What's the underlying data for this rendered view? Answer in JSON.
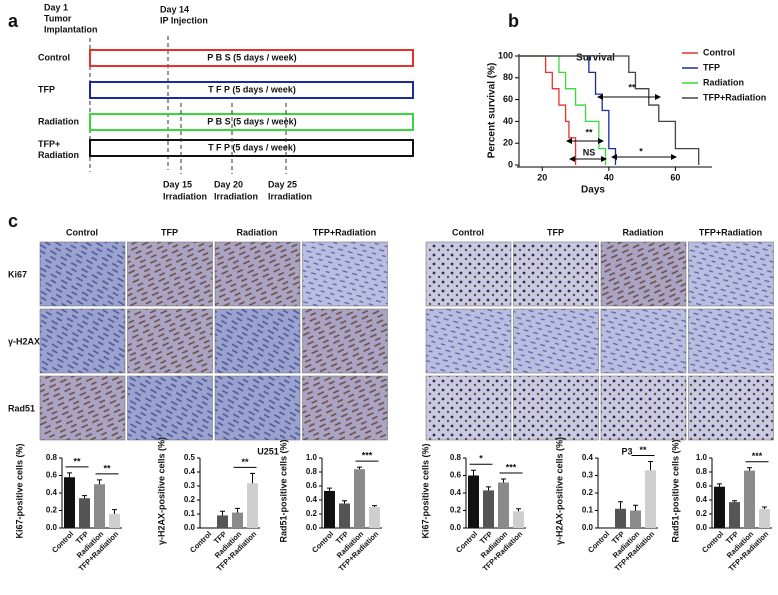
{
  "panel_a": {
    "label": "a",
    "day1": [
      "Day 1",
      "Tumor",
      "Implantation"
    ],
    "day14": [
      "Day 14",
      "IP Injection"
    ],
    "groups": [
      {
        "label": [
          "Control"
        ],
        "treatment": "P B S  (5 days / week)",
        "color": "#e8302a"
      },
      {
        "label": [
          "TFP"
        ],
        "treatment": "T F P  (5 days / week)",
        "color": "#1c2a9c"
      },
      {
        "label": [
          "Radiation"
        ],
        "treatment": "P B S  (5 days / week)",
        "color": "#39d839"
      },
      {
        "label": [
          "TFP+",
          "Radiation"
        ],
        "treatment": "T F P  (5 days / week)",
        "color": "#111111"
      }
    ],
    "irradiation": [
      [
        "Day 15",
        "Irradiation"
      ],
      [
        "Day 20",
        "Irradiation"
      ],
      [
        "Day 25",
        "Irradiation"
      ]
    ]
  },
  "panel_b": {
    "label": "b"
  },
  "panel_c": {
    "label": "c",
    "columns": [
      "Control",
      "TFP",
      "Radiation",
      "TFP+Radiation"
    ],
    "rows": [
      "Ki67",
      "γ-H2AX",
      "Rad51"
    ],
    "cell_lines": [
      "U251",
      "P3"
    ]
  },
  "chart_data": [
    {
      "type": "step",
      "title": "Survival",
      "xlabel": "Days",
      "ylabel": "Percent survival (%)",
      "xlim": [
        13,
        71
      ],
      "xticks": [
        20,
        40,
        60
      ],
      "ylim": [
        0,
        100
      ],
      "yticks": [
        0,
        20,
        40,
        60,
        80,
        100
      ],
      "series": [
        {
          "name": "Control",
          "color": "#e8302a",
          "x": [
            13,
            21,
            23,
            25,
            27,
            28,
            30
          ],
          "values": [
            100,
            85,
            70,
            55,
            40,
            25,
            0
          ]
        },
        {
          "name": "TFP",
          "color": "#1c2a9c",
          "x": [
            13,
            34,
            36,
            38,
            40,
            42
          ],
          "values": [
            100,
            85,
            65,
            50,
            15,
            0
          ]
        },
        {
          "name": "Radiation",
          "color": "#39d839",
          "x": [
            13,
            25,
            27,
            30,
            33,
            37,
            39
          ],
          "values": [
            100,
            85,
            70,
            55,
            40,
            15,
            0
          ]
        },
        {
          "name": "TFP+Radiation",
          "color": "#444444",
          "x": [
            13,
            46,
            48,
            52,
            55,
            60,
            67
          ],
          "values": [
            100,
            85,
            70,
            55,
            40,
            15,
            0
          ]
        }
      ],
      "annotations": [
        "**",
        "**",
        "NS",
        "*"
      ]
    },
    {
      "type": "bar",
      "ylabel": "Ki67-positive cells (%)",
      "categories": [
        "Control",
        "TFP",
        "Radiation",
        "TFP+Radiation"
      ],
      "colors": [
        "#111111",
        "#555555",
        "#8a8a8a",
        "#cfcfcf"
      ],
      "values": [
        0.58,
        0.34,
        0.5,
        0.16
      ],
      "errors": [
        0.05,
        0.03,
        0.05,
        0.05
      ],
      "ylim": [
        0,
        0.8
      ],
      "yticks": [
        {
          "value": 0,
          "label": "0.0"
        },
        0.2,
        0.4,
        0.6,
        0.8
      ],
      "annotations": [
        "**",
        "**"
      ]
    },
    {
      "type": "bar",
      "ylabel": "γ-H2AX-positive cells (%)",
      "categories": [
        "Control",
        "TFP",
        "Radiation",
        "TFP+Radiation"
      ],
      "colors": [
        "#111111",
        "#555555",
        "#8a8a8a",
        "#cfcfcf"
      ],
      "values": [
        0,
        0.09,
        0.11,
        0.32
      ],
      "errors": [
        0,
        0.03,
        0.03,
        0.07
      ],
      "ylim": [
        0,
        0.5
      ],
      "yticks": [
        {
          "value": 0,
          "label": "0.0"
        },
        0.1,
        0.2,
        0.3,
        0.4,
        0.5
      ],
      "annotations": [
        "**"
      ]
    },
    {
      "type": "bar",
      "ylabel": "Rad51-positive cells (%)",
      "categories": [
        "Control",
        "TFP",
        "Radiation",
        "TFP+Radiation"
      ],
      "colors": [
        "#111111",
        "#555555",
        "#8a8a8a",
        "#cfcfcf"
      ],
      "values": [
        0.53,
        0.35,
        0.84,
        0.3
      ],
      "errors": [
        0.04,
        0.04,
        0.03,
        0.02
      ],
      "ylim": [
        0,
        1
      ],
      "yticks": [
        {
          "value": 0,
          "label": "0.0"
        },
        0.2,
        0.4,
        0.6,
        0.8,
        {
          "value": 1,
          "label": "1.0"
        }
      ],
      "annotations": [
        "***"
      ]
    },
    {
      "type": "bar",
      "ylabel": "Ki67-positive cells (%)",
      "categories": [
        "Control",
        "TFP",
        "Radiation",
        "TFP+Radiation"
      ],
      "colors": [
        "#111111",
        "#555555",
        "#8a8a8a",
        "#cfcfcf"
      ],
      "values": [
        0.6,
        0.43,
        0.52,
        0.19
      ],
      "errors": [
        0.06,
        0.04,
        0.04,
        0.03
      ],
      "ylim": [
        0,
        0.8
      ],
      "yticks": [
        {
          "value": 0,
          "label": "0.0"
        },
        0.2,
        0.4,
        0.6,
        0.8
      ],
      "annotations": [
        "*",
        "***"
      ]
    },
    {
      "type": "bar",
      "ylabel": "γ-H2AX-positive cells (%)",
      "categories": [
        "Control",
        "TFP",
        "Radiation",
        "TFP+Radiation"
      ],
      "colors": [
        "#111111",
        "#555555",
        "#8a8a8a",
        "#cfcfcf"
      ],
      "values": [
        0,
        0.11,
        0.1,
        0.33
      ],
      "errors": [
        0,
        0.04,
        0.03,
        0.05
      ],
      "ylim": [
        0,
        0.4
      ],
      "yticks": [
        {
          "value": 0,
          "label": "0.0"
        },
        0.1,
        0.2,
        0.3,
        0.4
      ],
      "annotations": [
        "**"
      ]
    },
    {
      "type": "bar",
      "ylabel": "Rad51-positive cells (%)",
      "categories": [
        "Control",
        "TFP",
        "Radiation",
        "TFP+Radiation"
      ],
      "colors": [
        "#111111",
        "#555555",
        "#8a8a8a",
        "#cfcfcf"
      ],
      "values": [
        0.59,
        0.37,
        0.82,
        0.27
      ],
      "errors": [
        0.04,
        0.02,
        0.04,
        0.03
      ],
      "ylim": [
        0,
        1
      ],
      "yticks": [
        {
          "value": 0,
          "label": "0.0"
        },
        0.2,
        0.4,
        0.6,
        0.8,
        {
          "value": 1,
          "label": "1.0"
        }
      ],
      "annotations": [
        "***"
      ]
    }
  ]
}
